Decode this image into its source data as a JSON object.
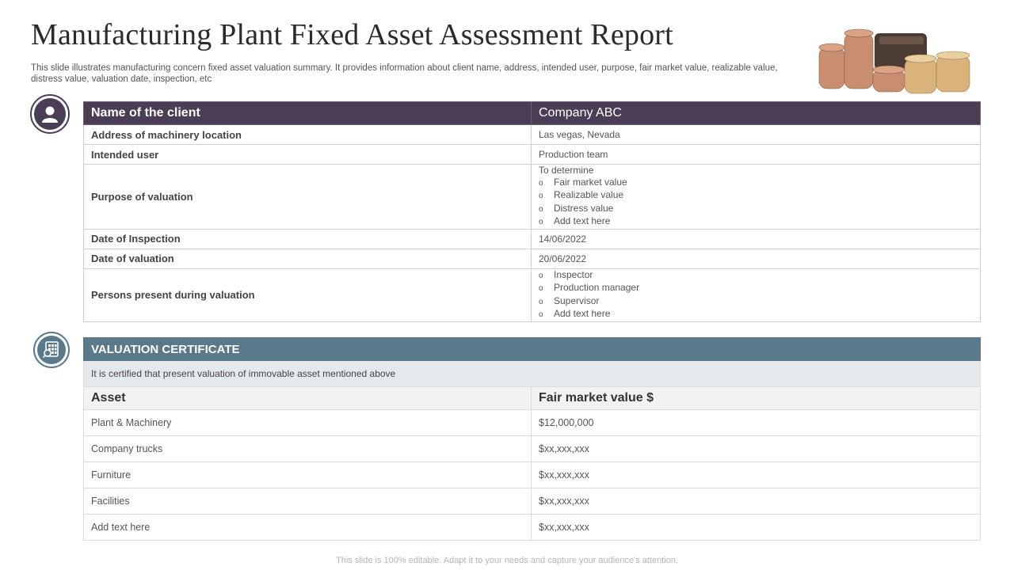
{
  "title": "Manufacturing Plant Fixed Asset Assessment Report",
  "subtitle": "This slide illustrates manufacturing concern fixed asset valuation summary. It provides information about client name, address, intended user, purpose, fair market value, realizable value, distress value, valuation date, inspection, etc",
  "icons": {
    "top": "user-icon",
    "bottom": "calculator-search-icon",
    "decor": "coins-wallet-icon"
  },
  "colors": {
    "client_header": "#4a3d55",
    "certificate_header": "#5a7a8c"
  },
  "client_table": {
    "header_label": "Name of the client",
    "header_value": "Company ABC",
    "address_label": "Address  of machinery location",
    "address_value": "Las vegas, Nevada",
    "user_label": "Intended user",
    "user_value": "Production team",
    "purpose_label": "Purpose  of valuation",
    "purpose_lead": "To determine",
    "purpose_items": [
      "Fair market value",
      "Realizable value",
      "Distress value",
      "Add text here"
    ],
    "inspection_label": "Date of Inspection",
    "inspection_value": "14/06/2022",
    "valuation_label": "Date of valuation",
    "valuation_value": "20/06/2022",
    "persons_label": "Persons  present during valuation",
    "persons_items": [
      "Inspector",
      "Production manager",
      "Supervisor",
      "Add text here"
    ],
    "bullet": "o"
  },
  "certificate": {
    "title": "VALUATION CERTIFICATE",
    "statement": "It is certified that present valuation  of immovable  asset mentioned above",
    "col_asset": "Asset",
    "col_value": "Fair market value $",
    "rows": [
      {
        "asset": "Plant & Machinery",
        "value": "$12,000,000"
      },
      {
        "asset": "Company  trucks",
        "value": "$xx,xxx,xxx"
      },
      {
        "asset": "Furniture",
        "value": "$xx,xxx,xxx"
      },
      {
        "asset": "Facilities",
        "value": "$xx,xxx,xxx"
      },
      {
        "asset": "Add text here",
        "value": "$xx,xxx,xxx"
      }
    ]
  },
  "footer": "This slide is 100% editable. Adapt it to your needs and capture your audience's attention."
}
